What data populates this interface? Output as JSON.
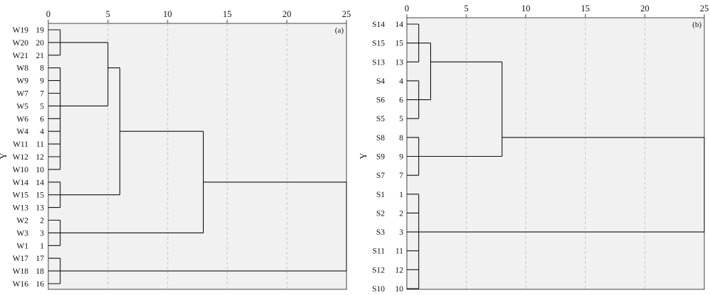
{
  "chart_data": [
    {
      "type": "dendrogram",
      "panel_label": "(a)",
      "ylabel": "Y",
      "xlim": [
        0,
        25
      ],
      "x_ticks": [
        0,
        5,
        10,
        15,
        20,
        25
      ],
      "x_tick_labels": [
        "0",
        "5",
        "10",
        "15",
        "20",
        "25"
      ],
      "grid": "vertical dashed",
      "leaves": [
        {
          "name": "W19",
          "number": "19"
        },
        {
          "name": "W20",
          "number": "20"
        },
        {
          "name": "W21",
          "number": "21"
        },
        {
          "name": "W8",
          "number": "8"
        },
        {
          "name": "W9",
          "number": "9"
        },
        {
          "name": "W7",
          "number": "7"
        },
        {
          "name": "W5",
          "number": "5"
        },
        {
          "name": "W6",
          "number": "6"
        },
        {
          "name": "W4",
          "number": "4"
        },
        {
          "name": "W11",
          "number": "11"
        },
        {
          "name": "W12",
          "number": "12"
        },
        {
          "name": "W10",
          "number": "10"
        },
        {
          "name": "W14",
          "number": "14"
        },
        {
          "name": "W15",
          "number": "15"
        },
        {
          "name": "W13",
          "number": "13"
        },
        {
          "name": "W2",
          "number": "2"
        },
        {
          "name": "W3",
          "number": "3"
        },
        {
          "name": "W1",
          "number": "1"
        },
        {
          "name": "W17",
          "number": "17"
        },
        {
          "name": "W18",
          "number": "18"
        },
        {
          "name": "W16",
          "number": "16"
        }
      ],
      "merges": [
        {
          "from": 0,
          "to": 2,
          "height": 1,
          "out": 1
        },
        {
          "from": 3,
          "to": 11,
          "height": 1,
          "out": 6
        },
        {
          "from": 12,
          "to": 14,
          "height": 1,
          "out": 13
        },
        {
          "from": 15,
          "to": 17,
          "height": 1,
          "out": 16
        },
        {
          "from": 18,
          "to": 20,
          "height": 1,
          "out": 19
        },
        {
          "from": 1,
          "to": 6,
          "height": 5,
          "out": 3
        },
        {
          "from": 3,
          "to": 13,
          "height": 6,
          "out": 8
        },
        {
          "from": 8,
          "to": 16,
          "height": 13,
          "out": 12
        },
        {
          "from": 12,
          "to": 19,
          "height": 25,
          "out": null
        }
      ]
    },
    {
      "type": "dendrogram",
      "panel_label": "(b)",
      "ylabel": "Y",
      "xlim": [
        0,
        25
      ],
      "x_ticks": [
        0,
        5,
        10,
        15,
        20,
        25
      ],
      "x_tick_labels": [
        "0",
        "5",
        "10",
        "15",
        "20",
        "25"
      ],
      "grid": "vertical dashed",
      "leaves": [
        {
          "name": "S14",
          "number": "14"
        },
        {
          "name": "S15",
          "number": "15"
        },
        {
          "name": "S13",
          "number": "13"
        },
        {
          "name": "S4",
          "number": "4"
        },
        {
          "name": "S6",
          "number": "6"
        },
        {
          "name": "S5",
          "number": "5"
        },
        {
          "name": "S8",
          "number": "8"
        },
        {
          "name": "S9",
          "number": "9"
        },
        {
          "name": "S7",
          "number": "7"
        },
        {
          "name": "S1",
          "number": "1"
        },
        {
          "name": "S2",
          "number": "2"
        },
        {
          "name": "S3",
          "number": "3"
        },
        {
          "name": "S11",
          "number": "11"
        },
        {
          "name": "S12",
          "number": "12"
        },
        {
          "name": "S10",
          "number": "10"
        }
      ],
      "merges": [
        {
          "from": 0,
          "to": 2,
          "height": 1,
          "out": 1
        },
        {
          "from": 3,
          "to": 5,
          "height": 1,
          "out": 4
        },
        {
          "from": 6,
          "to": 8,
          "height": 1,
          "out": 7
        },
        {
          "from": 9,
          "to": 14,
          "height": 1,
          "out": 11
        },
        {
          "from": 1,
          "to": 4,
          "height": 2,
          "out": 2
        },
        {
          "from": 2,
          "to": 7,
          "height": 8,
          "out": 6
        },
        {
          "from": 6,
          "to": 11,
          "height": 25,
          "out": null
        }
      ]
    }
  ]
}
